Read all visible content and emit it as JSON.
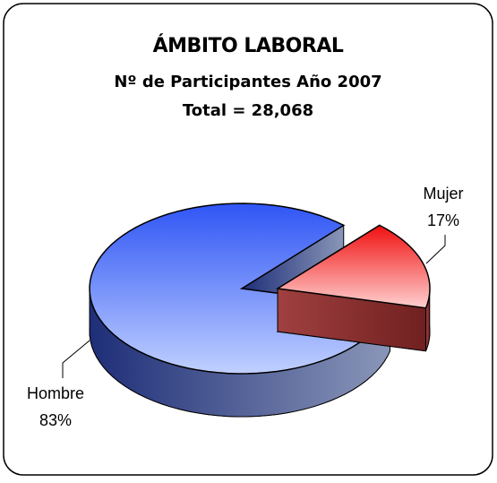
{
  "chart_data": {
    "type": "pie",
    "title": "ÁMBITO LABORAL",
    "subtitle": [
      "Nº de Participantes Año 2007",
      "Total = 28,068"
    ],
    "categories": [
      "Hombre",
      "Mujer"
    ],
    "values": [
      83,
      17
    ],
    "value_labels": [
      "83%",
      "17%"
    ],
    "colors": [
      "#3f63f0",
      "#f02020"
    ]
  }
}
